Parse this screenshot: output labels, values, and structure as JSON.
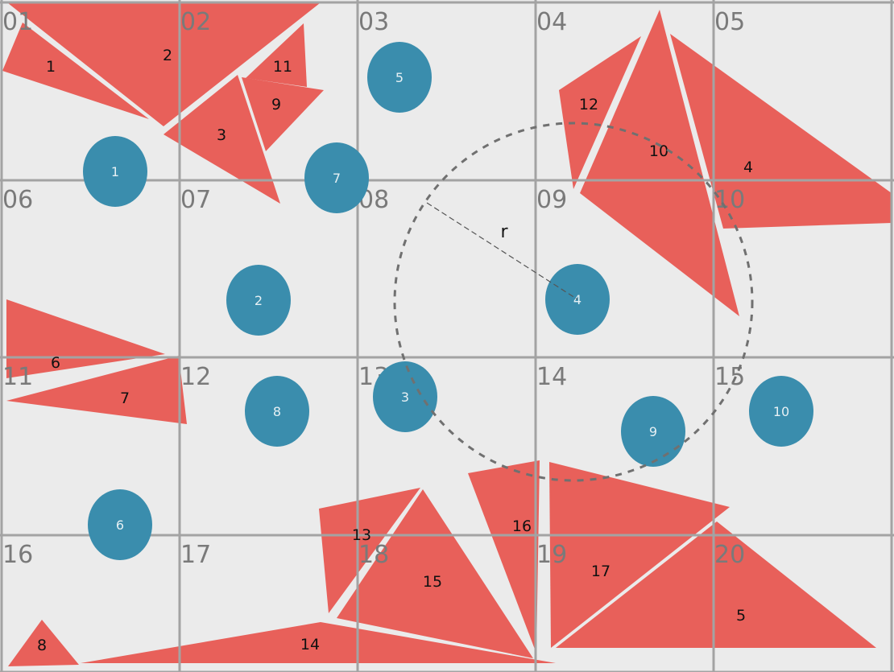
{
  "colors": {
    "background": "#ebebeb",
    "grid": "#a3a3a3",
    "triangle": "#e8605a",
    "circle": "#3a8dad",
    "dashed": "#707070"
  },
  "grid": {
    "columns": 5,
    "rows": 4,
    "cell_labels": [
      "01",
      "02",
      "03",
      "04",
      "05",
      "06",
      "07",
      "08",
      "09",
      "10",
      "11",
      "12",
      "13",
      "14",
      "15",
      "16",
      "17",
      "18",
      "19",
      "20"
    ]
  },
  "triangles": [
    {
      "label": "1"
    },
    {
      "label": "2"
    },
    {
      "label": "3"
    },
    {
      "label": "4"
    },
    {
      "label": "5"
    },
    {
      "label": "6"
    },
    {
      "label": "7"
    },
    {
      "label": "8"
    },
    {
      "label": "9"
    },
    {
      "label": "10"
    },
    {
      "label": "11"
    },
    {
      "label": "12"
    },
    {
      "label": "13"
    },
    {
      "label": "14"
    },
    {
      "label": "15"
    },
    {
      "label": "16"
    },
    {
      "label": "17"
    }
  ],
  "circles": [
    {
      "label": "1"
    },
    {
      "label": "2"
    },
    {
      "label": "3"
    },
    {
      "label": "4"
    },
    {
      "label": "5"
    },
    {
      "label": "6"
    },
    {
      "label": "7"
    },
    {
      "label": "8"
    },
    {
      "label": "9"
    },
    {
      "label": "10"
    }
  ],
  "radius": {
    "label": "r",
    "center_circle": "4"
  }
}
